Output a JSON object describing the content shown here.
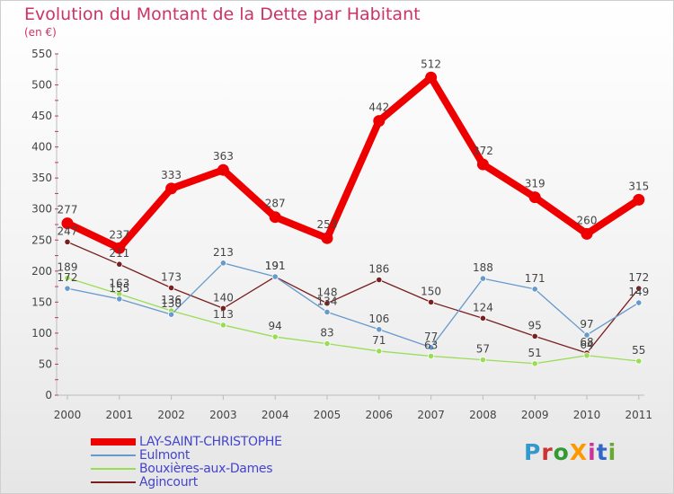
{
  "header": {
    "title": "Evolution du Montant de la Dette par Habitant",
    "unit": "(en €)"
  },
  "logo": {
    "text": "ProXiti",
    "colors": [
      "#3399cc",
      "#cc3333",
      "#339933",
      "#ff9900",
      "#cc3399",
      "#3366cc",
      "#66aa33"
    ]
  },
  "chart_data": {
    "type": "line",
    "title": "Evolution du Montant de la Dette par Habitant",
    "ylabel": "(en €)",
    "xlabel": "",
    "categories": [
      "2000",
      "2001",
      "2002",
      "2003",
      "2004",
      "2005",
      "2006",
      "2007",
      "2008",
      "2009",
      "2010",
      "2011"
    ],
    "ylim": [
      0,
      550
    ],
    "yticks": [
      0,
      50,
      100,
      150,
      200,
      250,
      300,
      350,
      400,
      450,
      500,
      550
    ],
    "grid": false,
    "legend_position": "bottom-left",
    "series": [
      {
        "name": "LAY-SAINT-CHRISTOPHE",
        "color": "#ee0000",
        "values": [
          277,
          237,
          333,
          363,
          287,
          253,
          442,
          512,
          372,
          319,
          260,
          315
        ],
        "labels": [
          "277",
          "237",
          "333",
          "363",
          "287",
          "253",
          "442",
          "512",
          "372",
          "319",
          "260",
          "315"
        ]
      },
      {
        "name": "Eulmont",
        "color": "#6699cc",
        "values": [
          172,
          155,
          130,
          213,
          191,
          134,
          106,
          77,
          188,
          171,
          97,
          149
        ],
        "labels": [
          "172",
          "155",
          "130",
          "213",
          "191",
          "134",
          "106",
          "77",
          "188",
          "171",
          "97",
          "149"
        ]
      },
      {
        "name": "Bouxières-aux-Dames",
        "color": "#99dd55",
        "values": [
          189,
          163,
          136,
          113,
          94,
          83,
          71,
          63,
          57,
          51,
          64,
          55
        ],
        "labels": [
          "189",
          "163",
          "136",
          "113",
          "94",
          "83",
          "71",
          "63",
          "57",
          "51",
          "64",
          "55"
        ]
      },
      {
        "name": "Agincourt",
        "color": "#7a1f1f",
        "values": [
          247,
          211,
          173,
          140,
          191,
          148,
          186,
          150,
          124,
          95,
          68,
          172
        ],
        "labels": [
          "247",
          "211",
          "173",
          "140",
          "191",
          "148",
          "186",
          "150",
          "124",
          "95",
          "68",
          "172"
        ]
      }
    ]
  }
}
